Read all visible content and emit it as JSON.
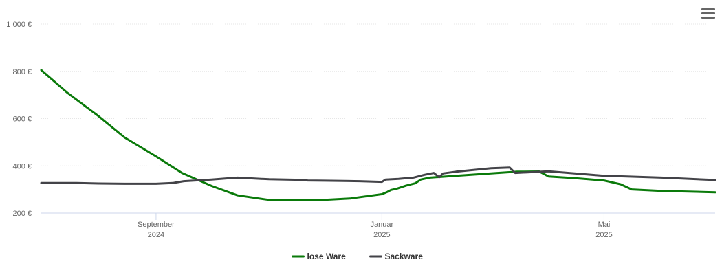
{
  "chart_data": {
    "type": "line",
    "title": "",
    "xlabel": "",
    "ylabel": "",
    "ylim": [
      200,
      1000
    ],
    "y_ticks": [
      "200 €",
      "400 €",
      "600 €",
      "800 €",
      "1 000 €"
    ],
    "y_tick_values": [
      200,
      400,
      600,
      800,
      1000
    ],
    "x_range": [
      "2024-07-01",
      "2025-06-30"
    ],
    "x_ticks": [
      {
        "date": "2024-09-01",
        "label": "September",
        "sublabel": "2024"
      },
      {
        "date": "2025-01-01",
        "label": "Januar",
        "sublabel": "2025"
      },
      {
        "date": "2025-05-01",
        "label": "Mai",
        "sublabel": "2025"
      }
    ],
    "grid": "horizontal",
    "legend_position": "bottom-center",
    "series": [
      {
        "name": "lose Ware",
        "color": "#0a7a0a",
        "points": [
          [
            "2024-07-01",
            805
          ],
          [
            "2024-07-15",
            710
          ],
          [
            "2024-08-01",
            610
          ],
          [
            "2024-08-15",
            520
          ],
          [
            "2024-09-01",
            440
          ],
          [
            "2024-09-15",
            370
          ],
          [
            "2024-10-01",
            315
          ],
          [
            "2024-10-15",
            275
          ],
          [
            "2024-11-01",
            256
          ],
          [
            "2024-11-15",
            254
          ],
          [
            "2024-12-01",
            256
          ],
          [
            "2024-12-15",
            262
          ],
          [
            "2025-01-01",
            280
          ],
          [
            "2025-01-04",
            290
          ],
          [
            "2025-01-06",
            298
          ],
          [
            "2025-01-09",
            303
          ],
          [
            "2025-01-14",
            316
          ],
          [
            "2025-01-19",
            326
          ],
          [
            "2025-01-22",
            342
          ],
          [
            "2025-01-27",
            350
          ],
          [
            "2025-02-10",
            358
          ],
          [
            "2025-03-01",
            368
          ],
          [
            "2025-03-15",
            375
          ],
          [
            "2025-03-27",
            376
          ],
          [
            "2025-04-01",
            355
          ],
          [
            "2025-04-15",
            348
          ],
          [
            "2025-05-01",
            338
          ],
          [
            "2025-05-10",
            322
          ],
          [
            "2025-05-16",
            300
          ],
          [
            "2025-06-01",
            294
          ],
          [
            "2025-06-30",
            288
          ]
        ]
      },
      {
        "name": "Sackware",
        "color": "#434348",
        "points": [
          [
            "2024-07-01",
            327
          ],
          [
            "2024-07-20",
            327
          ],
          [
            "2024-08-01",
            325
          ],
          [
            "2024-08-15",
            324
          ],
          [
            "2024-09-01",
            324
          ],
          [
            "2024-09-10",
            327
          ],
          [
            "2024-09-16",
            335
          ],
          [
            "2024-10-01",
            342
          ],
          [
            "2024-10-15",
            350
          ],
          [
            "2024-11-01",
            343
          ],
          [
            "2024-11-15",
            341
          ],
          [
            "2024-11-22",
            338
          ],
          [
            "2024-12-01",
            337
          ],
          [
            "2024-12-20",
            335
          ],
          [
            "2025-01-01",
            332
          ],
          [
            "2025-01-03",
            342
          ],
          [
            "2025-01-10",
            345
          ],
          [
            "2025-01-18",
            350
          ],
          [
            "2025-01-24",
            362
          ],
          [
            "2025-01-29",
            370
          ],
          [
            "2025-02-01",
            352
          ],
          [
            "2025-02-03",
            368
          ],
          [
            "2025-02-10",
            375
          ],
          [
            "2025-03-01",
            390
          ],
          [
            "2025-03-11",
            393
          ],
          [
            "2025-03-14",
            370
          ],
          [
            "2025-04-01",
            377
          ],
          [
            "2025-04-15",
            368
          ],
          [
            "2025-05-01",
            358
          ],
          [
            "2025-06-01",
            350
          ],
          [
            "2025-06-30",
            340
          ]
        ]
      }
    ]
  },
  "menu": {
    "icon": "hamburger-menu-icon"
  }
}
